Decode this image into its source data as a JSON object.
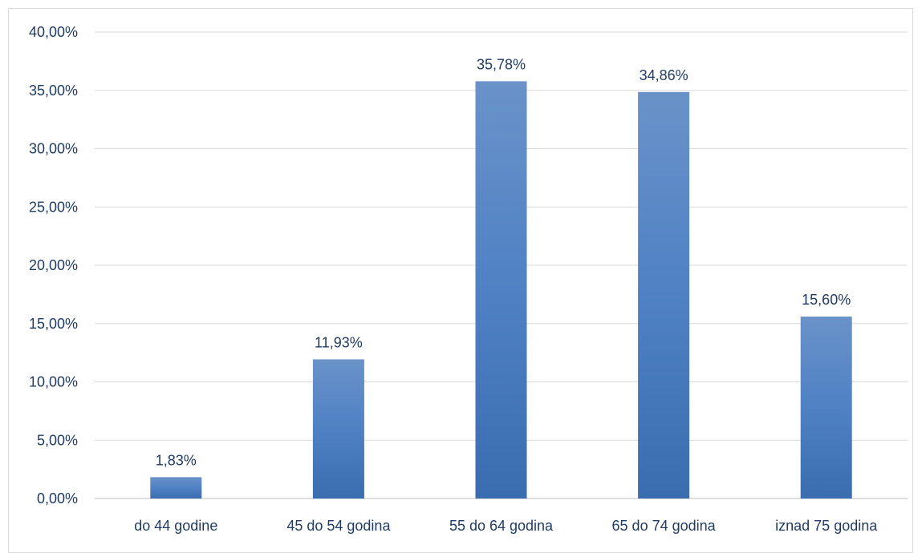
{
  "chart_data": {
    "type": "bar",
    "categories": [
      "do 44 godine",
      "45 do 54 godina",
      "55 do 64 godina",
      "65 do 74 godina",
      "iznad 75 godina"
    ],
    "values": [
      1.83,
      11.93,
      35.78,
      34.86,
      15.6
    ],
    "data_labels": [
      "1,83%",
      "11,93%",
      "35,78%",
      "34,86%",
      "15,60%"
    ],
    "y_ticks": [
      0,
      5,
      10,
      15,
      20,
      25,
      30,
      35,
      40
    ],
    "y_tick_labels": [
      "0,00%",
      "5,00%",
      "10,00%",
      "15,00%",
      "20,00%",
      "25,00%",
      "30,00%",
      "35,00%",
      "40,00%"
    ],
    "ylim": [
      0,
      40
    ],
    "title": "",
    "xlabel": "",
    "ylabel": "",
    "grid": true,
    "legend": "none",
    "colors": {
      "bar_top": "#6a92c9",
      "bar_mid": "#4f81c4",
      "bar_bottom": "#3a6cb0",
      "grid": "#d9d9d9",
      "axis": "#bfbfbf",
      "text": "#1f3b63"
    }
  }
}
